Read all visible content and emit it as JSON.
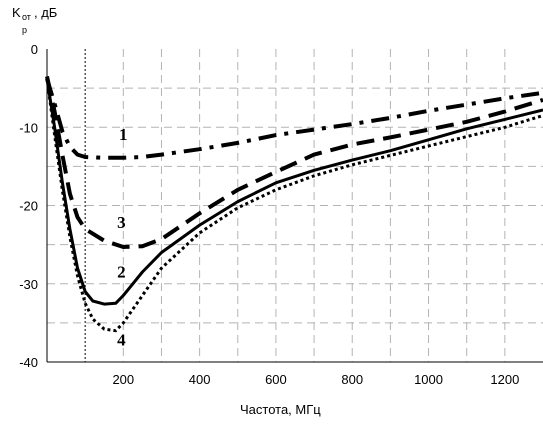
{
  "chart_data": {
    "type": "line",
    "title": "",
    "ylabel": {
      "main": "K",
      "sub1": "от",
      "sub2": "р",
      "unit": ", дБ"
    },
    "xlabel": "Частота, МГц",
    "xlim": [
      0,
      1300
    ],
    "ylim": [
      -40,
      0
    ],
    "x_ticks": [
      200,
      400,
      600,
      800,
      1000,
      1200
    ],
    "y_ticks": [
      0,
      -10,
      -20,
      -30,
      -40
    ],
    "x_grid": [
      100,
      200,
      300,
      400,
      500,
      600,
      700,
      800,
      900,
      1000,
      1100,
      1200
    ],
    "y_grid": [
      -5,
      -10,
      -15,
      -20,
      -25,
      -30,
      -35
    ],
    "grid": true,
    "marker_line_x": 100,
    "series": [
      {
        "name": "1",
        "style": "dashdot",
        "points": [
          [
            0,
            -3.8
          ],
          [
            20,
            -7
          ],
          [
            40,
            -10.5
          ],
          [
            60,
            -12.5
          ],
          [
            80,
            -13.5
          ],
          [
            100,
            -13.8
          ],
          [
            150,
            -13.9
          ],
          [
            200,
            -13.9
          ],
          [
            250,
            -13.8
          ],
          [
            300,
            -13.5
          ],
          [
            400,
            -12.8
          ],
          [
            500,
            -12
          ],
          [
            600,
            -11
          ],
          [
            700,
            -10.3
          ],
          [
            800,
            -9.6
          ],
          [
            900,
            -8.8
          ],
          [
            1000,
            -7.9
          ],
          [
            1100,
            -7.1
          ],
          [
            1200,
            -6.3
          ],
          [
            1300,
            -5.6
          ]
        ]
      },
      {
        "name": "2",
        "style": "solid",
        "points": [
          [
            0,
            -3.8
          ],
          [
            20,
            -10
          ],
          [
            40,
            -17
          ],
          [
            60,
            -23
          ],
          [
            80,
            -28
          ],
          [
            100,
            -31
          ],
          [
            120,
            -32.2
          ],
          [
            150,
            -32.6
          ],
          [
            180,
            -32.5
          ],
          [
            200,
            -31.5
          ],
          [
            250,
            -28.5
          ],
          [
            300,
            -26
          ],
          [
            400,
            -22.5
          ],
          [
            500,
            -19.5
          ],
          [
            600,
            -17.1
          ],
          [
            700,
            -15.5
          ],
          [
            800,
            -14.2
          ],
          [
            900,
            -13
          ],
          [
            1000,
            -11.6
          ],
          [
            1100,
            -10.2
          ],
          [
            1200,
            -9
          ],
          [
            1300,
            -7.8
          ]
        ]
      },
      {
        "name": "3",
        "style": "dash",
        "points": [
          [
            0,
            -3.5
          ],
          [
            20,
            -8
          ],
          [
            40,
            -13.5
          ],
          [
            60,
            -18.5
          ],
          [
            80,
            -21.5
          ],
          [
            100,
            -23
          ],
          [
            150,
            -24.5
          ],
          [
            200,
            -25.3
          ],
          [
            250,
            -25.2
          ],
          [
            300,
            -24.3
          ],
          [
            400,
            -21
          ],
          [
            500,
            -18
          ],
          [
            600,
            -15.7
          ],
          [
            700,
            -13.5
          ],
          [
            800,
            -12.2
          ],
          [
            900,
            -11.3
          ],
          [
            1000,
            -10.3
          ],
          [
            1100,
            -9.3
          ],
          [
            1200,
            -8
          ],
          [
            1300,
            -6.5
          ]
        ]
      },
      {
        "name": "4",
        "style": "dot",
        "points": [
          [
            0,
            -3.8
          ],
          [
            20,
            -11
          ],
          [
            40,
            -18
          ],
          [
            60,
            -24
          ],
          [
            80,
            -29
          ],
          [
            100,
            -32.5
          ],
          [
            120,
            -34.5
          ],
          [
            150,
            -35.8
          ],
          [
            180,
            -36
          ],
          [
            200,
            -35
          ],
          [
            250,
            -31.5
          ],
          [
            300,
            -28
          ],
          [
            400,
            -23.5
          ],
          [
            500,
            -20.3
          ],
          [
            600,
            -18
          ],
          [
            700,
            -16.2
          ],
          [
            800,
            -14.8
          ],
          [
            900,
            -13.6
          ],
          [
            1000,
            -12.4
          ],
          [
            1100,
            -11.2
          ],
          [
            1200,
            -10
          ],
          [
            1300,
            -8.5
          ]
        ]
      }
    ],
    "curve_labels": [
      {
        "text": "1",
        "x": 200,
        "y": -11.6
      },
      {
        "text": "2",
        "x": 195,
        "y": -29.2
      },
      {
        "text": "3",
        "x": 195,
        "y": -22.9
      },
      {
        "text": "4",
        "x": 195,
        "y": -37.9
      }
    ]
  }
}
